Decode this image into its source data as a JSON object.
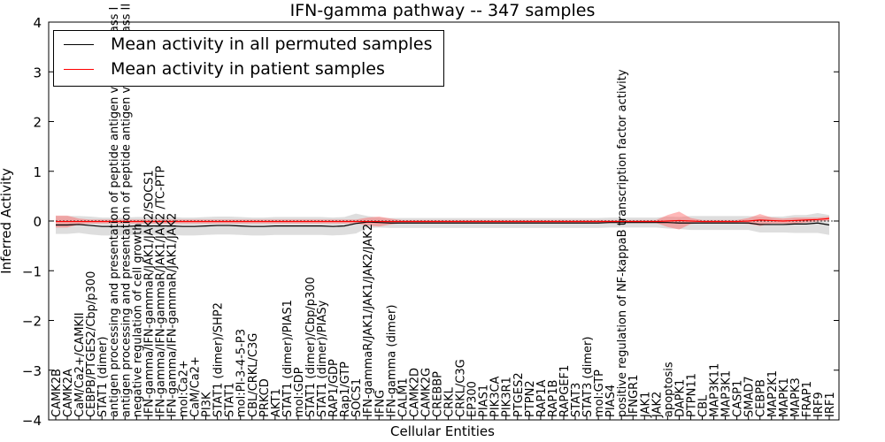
{
  "chart_data": {
    "type": "line",
    "title": "IFN-gamma pathway -- 347 samples",
    "xlabel": "Cellular Entities",
    "ylabel": "Inferred Activity",
    "ylim": [
      -4,
      4
    ],
    "yticks": [
      -4,
      -3,
      -2,
      -1,
      0,
      1,
      2,
      3,
      4
    ],
    "ytick_labels": [
      "−4",
      "−3",
      "−2",
      "−1",
      "0",
      "1",
      "2",
      "3",
      "4"
    ],
    "legend_position": "upper-left",
    "categories": [
      "CAMK2B",
      "CAMK2A",
      "CaM/Ca2+/CAMKII",
      "CEBPB/PTGES2/Cbp/p300",
      "STAT1 (dimer)",
      "antigen processing and presentation of peptide antigen via MHC class I",
      "antigen processing and presentation of peptide antigen via MHC class II",
      "negative regulation of cell growth",
      "IFN-gamma/IFN-gammaR/JAK1/JAK2/SOCS1",
      "IFN-gamma/IFN-gammaR/JAK1/JAK2 /TC-PTP",
      "IFN-gamma/IFN-gammaR/JAK1/JAK2",
      "mol:Ca2+",
      "CaM/Ca2+",
      "PI3K",
      "STAT1 (dimer)/SHP2",
      "STAT1",
      "mol:PI-3-4-5-P3",
      "CBL/CRKL/C3G",
      "PRKCD",
      "AKT1",
      "STAT1 (dimer)/PIAS1",
      "mol:GDP",
      "STAT1 (dimer)/Cbp/p300",
      "STAT1 (dimer)/PIASy",
      "RAP1/GDP",
      "Rap1/GTP",
      "SOCS1",
      "IFN-gammaR/JAK1/JAK1/JAK2/JAK2",
      "IFNG",
      "IFN-gamma (dimer)",
      "CALM1",
      "CAMK2D",
      "CAMK2G",
      "CREBBP",
      "CRKL",
      "CRKL/C3G",
      "EP300",
      "PIAS1",
      "PIK3CA",
      "PIK3R1",
      "PTGES2",
      "PTPN2",
      "RAP1A",
      "RAP1B",
      "RAPGEF1",
      "STAT3",
      "STAT3 (dimer)",
      "mol:GTP",
      "PIAS4",
      "positive regulation of NF-kappaB transcription factor activity",
      "IFNGR1",
      "JAK1",
      "JAK2",
      "apoptosis",
      "DAPK1",
      "PTPN11",
      "CBL",
      "MAP3K11",
      "MAP3K1",
      "CASP1",
      "SMAD7",
      "CEBPB",
      "MAP2K1",
      "MAPK1",
      "MAPK3",
      "FRAP1",
      "IRF9",
      "IRF1"
    ],
    "series": [
      {
        "name": "Mean activity in all permuted samples",
        "color": "#000000",
        "values": [
          -0.08,
          -0.08,
          -0.07,
          -0.09,
          -0.11,
          -0.11,
          -0.11,
          -0.1,
          -0.1,
          -0.1,
          -0.1,
          -0.11,
          -0.11,
          -0.1,
          -0.09,
          -0.09,
          -0.1,
          -0.11,
          -0.11,
          -0.1,
          -0.1,
          -0.1,
          -0.1,
          -0.1,
          -0.11,
          -0.1,
          -0.05,
          -0.02,
          -0.03,
          -0.04,
          -0.04,
          -0.04,
          -0.04,
          -0.04,
          -0.04,
          -0.04,
          -0.04,
          -0.04,
          -0.04,
          -0.04,
          -0.04,
          -0.04,
          -0.04,
          -0.04,
          -0.04,
          -0.04,
          -0.04,
          -0.04,
          -0.03,
          -0.03,
          -0.03,
          -0.03,
          -0.03,
          -0.03,
          -0.04,
          -0.04,
          -0.04,
          -0.04,
          -0.04,
          -0.04,
          -0.04,
          -0.07,
          -0.07,
          -0.07,
          -0.06,
          -0.06,
          -0.04,
          -0.08
        ],
        "band": [
          0.18,
          0.18,
          0.17,
          0.18,
          0.18,
          0.18,
          0.18,
          0.18,
          0.18,
          0.18,
          0.18,
          0.18,
          0.18,
          0.18,
          0.18,
          0.18,
          0.18,
          0.18,
          0.18,
          0.18,
          0.18,
          0.18,
          0.18,
          0.18,
          0.18,
          0.18,
          0.2,
          0.12,
          0.1,
          0.1,
          0.1,
          0.1,
          0.1,
          0.1,
          0.1,
          0.1,
          0.1,
          0.1,
          0.1,
          0.1,
          0.1,
          0.1,
          0.1,
          0.1,
          0.1,
          0.1,
          0.1,
          0.1,
          0.1,
          0.1,
          0.1,
          0.1,
          0.1,
          0.12,
          0.12,
          0.14,
          0.14,
          0.14,
          0.14,
          0.14,
          0.14,
          0.16,
          0.16,
          0.16,
          0.18,
          0.18,
          0.2,
          0.2
        ]
      },
      {
        "name": "Mean activity in patient samples",
        "color": "#ff0000",
        "values": [
          -0.01,
          -0.01,
          -0.01,
          -0.01,
          -0.01,
          -0.01,
          -0.01,
          -0.01,
          -0.01,
          -0.01,
          -0.01,
          -0.01,
          -0.01,
          -0.01,
          -0.01,
          -0.01,
          -0.01,
          -0.01,
          -0.01,
          -0.01,
          -0.01,
          -0.01,
          -0.01,
          -0.01,
          -0.01,
          -0.01,
          -0.01,
          -0.01,
          -0.01,
          -0.01,
          -0.01,
          -0.01,
          -0.01,
          -0.01,
          -0.01,
          -0.01,
          -0.01,
          -0.01,
          -0.01,
          -0.01,
          -0.01,
          -0.01,
          -0.01,
          -0.01,
          -0.01,
          -0.01,
          -0.01,
          -0.01,
          -0.01,
          -0.01,
          -0.01,
          -0.01,
          -0.01,
          0.0,
          0.01,
          0.0,
          -0.01,
          -0.01,
          -0.01,
          -0.01,
          0.0,
          0.02,
          0.01,
          0.0,
          0.01,
          0.02,
          0.03,
          0.05
        ],
        "band": [
          0.12,
          0.12,
          0.06,
          0.04,
          0.04,
          0.04,
          0.04,
          0.04,
          0.04,
          0.04,
          0.04,
          0.04,
          0.04,
          0.04,
          0.04,
          0.04,
          0.04,
          0.04,
          0.04,
          0.04,
          0.04,
          0.04,
          0.04,
          0.04,
          0.04,
          0.04,
          0.04,
          0.08,
          0.1,
          0.06,
          0.03,
          0.03,
          0.03,
          0.03,
          0.03,
          0.03,
          0.03,
          0.03,
          0.03,
          0.03,
          0.03,
          0.03,
          0.03,
          0.03,
          0.03,
          0.03,
          0.03,
          0.03,
          0.03,
          0.03,
          0.03,
          0.03,
          0.03,
          0.12,
          0.18,
          0.06,
          0.03,
          0.03,
          0.03,
          0.03,
          0.06,
          0.12,
          0.06,
          0.05,
          0.06,
          0.05,
          0.04,
          0.04
        ]
      }
    ]
  }
}
